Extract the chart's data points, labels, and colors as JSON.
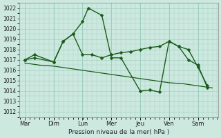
{
  "background_color": "#cce8df",
  "grid_color": "#99ccbb",
  "line_color": "#1a5c1a",
  "xlabel": "Pression niveau de la mer( hPa )",
  "ylim": [
    1011.5,
    1022.5
  ],
  "yticks": [
    1012,
    1013,
    1014,
    1015,
    1016,
    1017,
    1018,
    1019,
    1020,
    1021,
    1022
  ],
  "day_labels": [
    "Mar",
    "Dim",
    "Lun",
    "Mer",
    "Jeu",
    "Ven",
    "Sam"
  ],
  "day_positions": [
    0,
    1,
    2,
    3,
    4,
    5,
    6
  ],
  "xlim": [
    -0.2,
    6.7
  ],
  "series": [
    {
      "x": [
        0.0,
        0.33,
        1.0,
        1.33,
        1.67,
        2.0,
        2.2,
        2.67,
        3.0,
        3.33,
        4.0,
        4.33,
        4.67,
        5.0,
        5.33,
        5.67,
        6.0,
        6.33
      ],
      "y": [
        1017.0,
        1017.5,
        1016.8,
        1018.8,
        1019.5,
        1020.7,
        1022.0,
        1021.3,
        1017.2,
        1017.2,
        1014.0,
        1014.1,
        1013.9,
        1018.8,
        1018.3,
        1017.0,
        1016.5,
        1014.3
      ],
      "marker": "D",
      "markersize": 2.5,
      "linewidth": 1.0
    },
    {
      "x": [
        0.0,
        0.33,
        1.0,
        1.33,
        1.67,
        2.0,
        2.33,
        2.67,
        3.0,
        3.33,
        3.67,
        4.0,
        4.33,
        4.67,
        5.0,
        5.33,
        5.67,
        6.0,
        6.33
      ],
      "y": [
        1017.0,
        1017.2,
        1016.8,
        1018.8,
        1019.5,
        1017.5,
        1017.5,
        1017.2,
        1017.5,
        1017.7,
        1017.8,
        1018.0,
        1018.2,
        1018.3,
        1018.8,
        1018.3,
        1018.0,
        1016.3,
        1014.5
      ],
      "marker": "D",
      "markersize": 2.5,
      "linewidth": 1.0
    },
    {
      "x": [
        0.0,
        0.5,
        1.0,
        1.5,
        2.0,
        2.5,
        3.0,
        3.5,
        4.0,
        4.5,
        5.0,
        5.5,
        6.0,
        6.5
      ],
      "y": [
        1016.7,
        1016.5,
        1016.4,
        1016.2,
        1016.0,
        1015.8,
        1015.6,
        1015.4,
        1015.2,
        1015.0,
        1014.8,
        1014.7,
        1014.5,
        1014.3
      ],
      "marker": null,
      "markersize": 0,
      "linewidth": 0.9
    }
  ]
}
